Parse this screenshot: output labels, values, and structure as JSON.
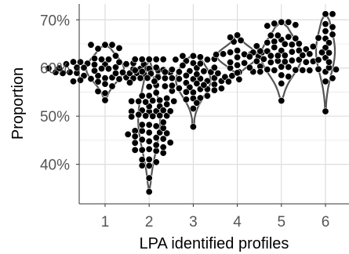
{
  "chart_data": {
    "type": "violin-beeswarm",
    "title": "",
    "xlabel": "LPA identified profiles",
    "ylabel": "Proportion",
    "categories": [
      "1",
      "2",
      "3",
      "4",
      "5",
      "6"
    ],
    "y_ticks": [
      {
        "value": 0.4,
        "label": "40%"
      },
      {
        "value": 0.5,
        "label": "50%"
      },
      {
        "value": 0.6,
        "label": "60%"
      },
      {
        "value": 0.7,
        "label": "70%"
      }
    ],
    "ylim": [
      0.318,
      0.733
    ],
    "grid": true,
    "legend": "none",
    "groups": [
      {
        "category": "1",
        "min": 0.533,
        "max": 0.648,
        "median": 0.598
      },
      {
        "category": "2",
        "min": 0.343,
        "max": 0.618,
        "median": 0.493
      },
      {
        "category": "3",
        "min": 0.478,
        "max": 0.625,
        "median": 0.575
      },
      {
        "category": "4",
        "min": 0.59,
        "max": 0.668,
        "median": 0.625
      },
      {
        "category": "5",
        "min": 0.532,
        "max": 0.695,
        "median": 0.625
      },
      {
        "category": "6",
        "min": 0.51,
        "max": 0.712,
        "median": 0.635
      }
    ],
    "colors": {
      "points": "#000000",
      "violin_fill": "#ffffff",
      "violin_stroke": "#555555",
      "grid": "#dddddd",
      "axis_text": "#555555"
    }
  }
}
